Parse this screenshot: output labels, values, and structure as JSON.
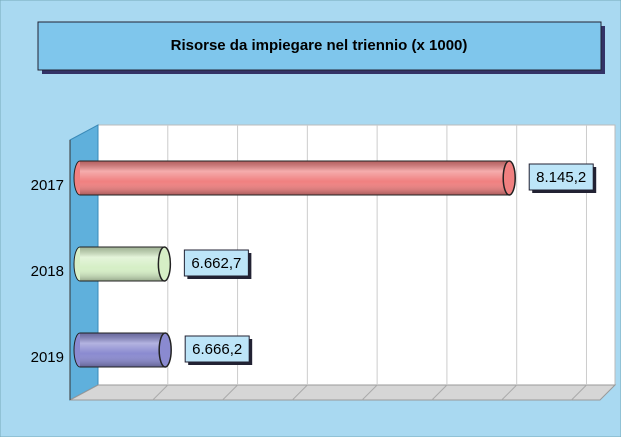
{
  "chart_data": {
    "type": "bar",
    "orientation": "horizontal",
    "title": "Risorse da impiegare nel triennio (x 1000)",
    "categories": [
      "2017",
      "2018",
      "2019"
    ],
    "values": [
      8145.2,
      6662.7,
      6666.2
    ],
    "value_labels": [
      "8.145,2",
      "6.662,7",
      "6.666,2"
    ],
    "colors": [
      "#f08080",
      "#d6efc6",
      "#8a8ad0"
    ],
    "xlim": [
      6300,
      8600
    ],
    "xticks": [
      6600,
      6900,
      7200,
      7500,
      7800,
      8100,
      8400
    ],
    "grid": true
  }
}
